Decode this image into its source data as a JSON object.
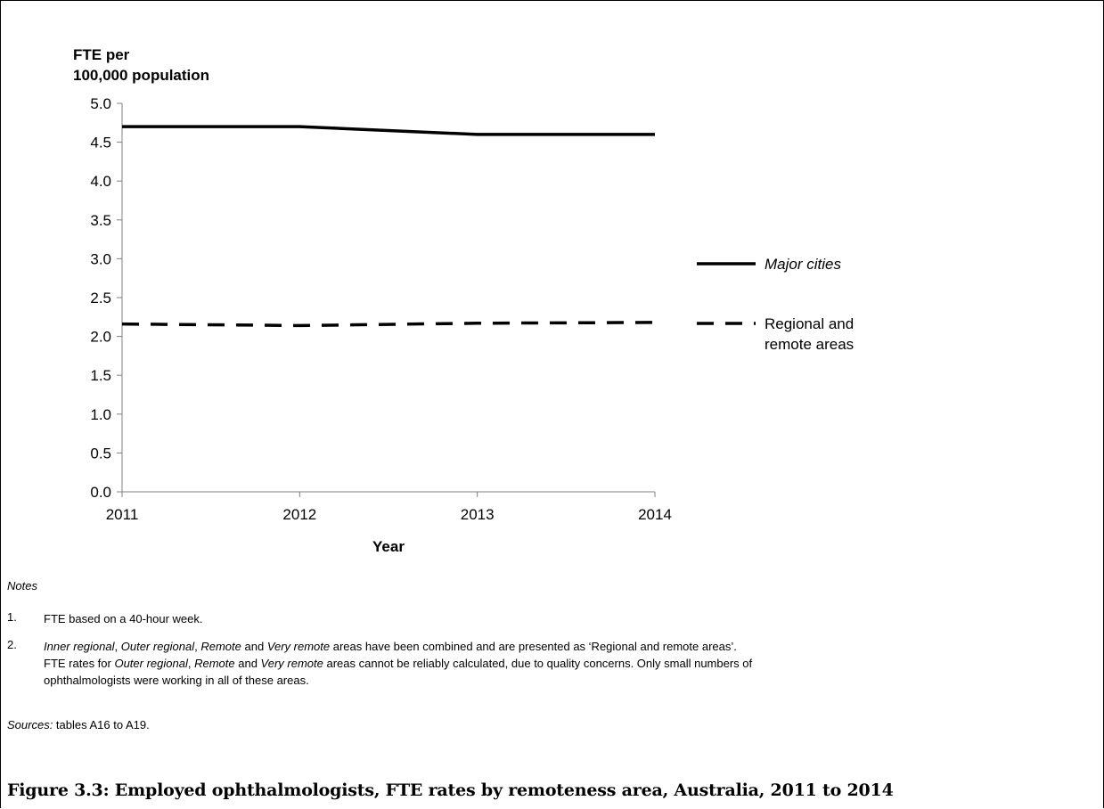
{
  "chart_data": {
    "type": "line",
    "ylabel": "FTE per 100,000 population",
    "xlabel": "Year",
    "x": [
      "2011",
      "2012",
      "2013",
      "2014"
    ],
    "ylim": [
      0,
      5
    ],
    "yticks": [
      "0.0",
      "0.5",
      "1.0",
      "1.5",
      "2.0",
      "2.5",
      "3.0",
      "3.5",
      "4.0",
      "4.5",
      "5.0"
    ],
    "grid": false,
    "legend_position": "right",
    "series": [
      {
        "name": "Major cities",
        "values": [
          4.7,
          4.7,
          4.6,
          4.6
        ],
        "style": "solid",
        "color": "#000000"
      },
      {
        "name": "Regional and remote areas",
        "values": [
          2.16,
          2.14,
          2.17,
          2.18
        ],
        "style": "dashed",
        "color": "#000000"
      }
    ]
  },
  "ylabel_lines": [
    "FTE per",
    "100,000 population"
  ],
  "legend": {
    "major_cities": "Major cities",
    "regional_line1": "Regional and",
    "regional_line2": "remote areas"
  },
  "notes": {
    "heading": "Notes",
    "items": [
      {
        "num": "1.",
        "text": "FTE based on a 40-hour week."
      },
      {
        "num": "2.",
        "parts": [
          "Inner regional",
          ", ",
          "Outer regional",
          ", ",
          "Remote",
          " and ",
          "Very remote",
          " areas have been combined and are presented as ‘Regional and remote areas’. FTE rates for ",
          "Outer regional",
          ", ",
          "Remote",
          " and ",
          "Very remote",
          " areas cannot be reliably calculated, due to quality concerns. Only small numbers of ophthalmologists were working in all of these areas."
        ]
      }
    ],
    "sources_label": "Sources:",
    "sources_text": " tables A16 to A19."
  },
  "figure_caption": "Figure 3.3: Employed ophthalmologists, FTE rates by remoteness area, Australia, 2011 to 2014"
}
